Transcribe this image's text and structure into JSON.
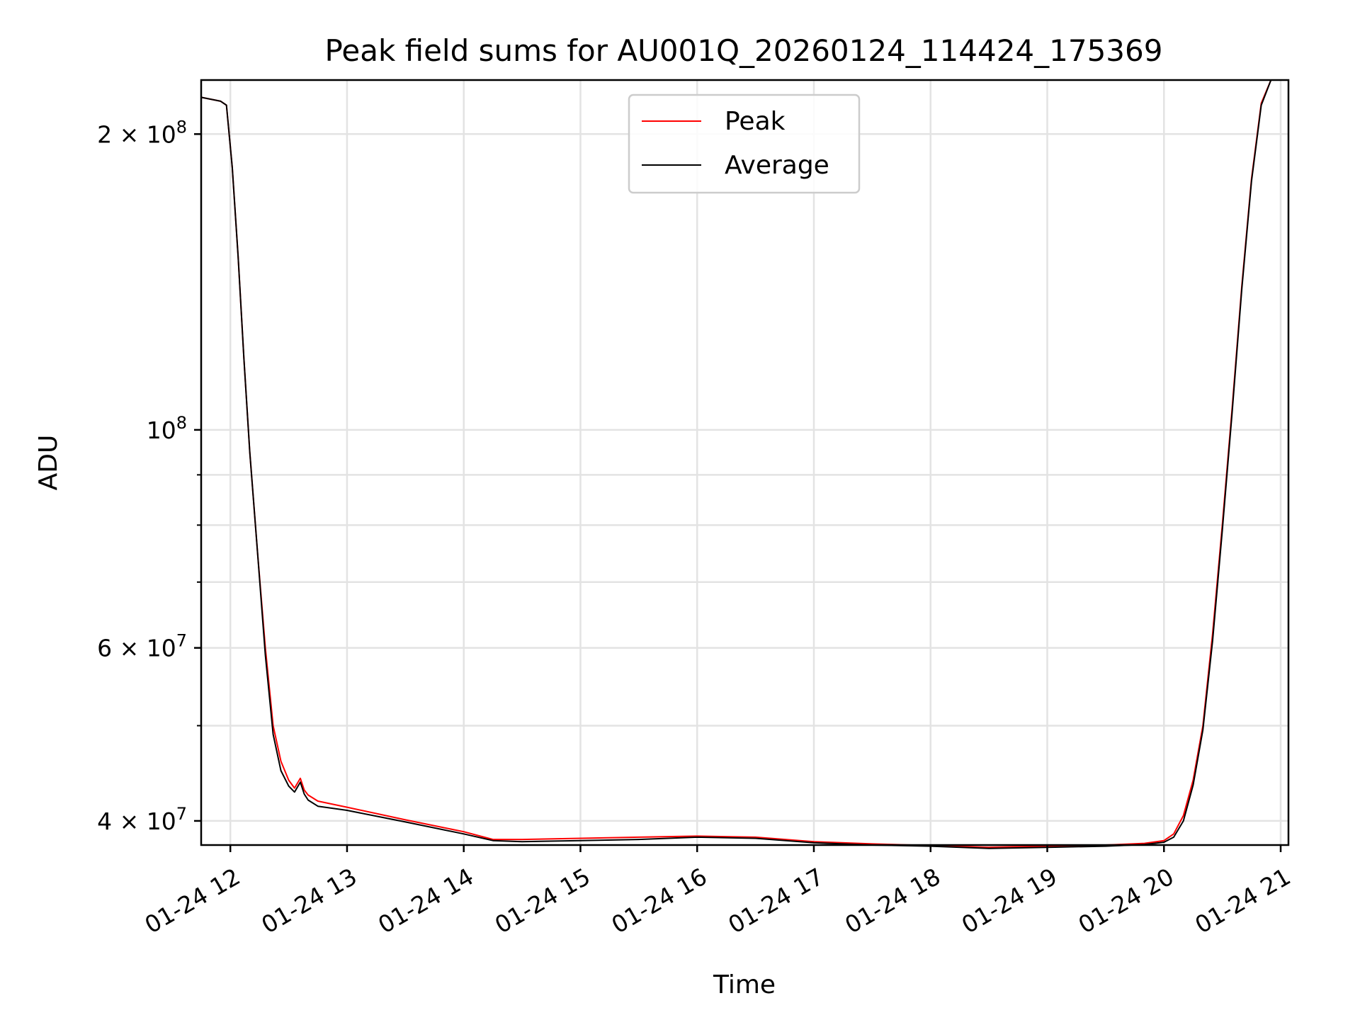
{
  "chart_data": {
    "type": "line",
    "title": "Peak field sums for AU001Q_20260124_114424_175369",
    "xlabel": "Time",
    "ylabel": "ADU",
    "yscale": "log",
    "ylim": [
      37800000,
      227000000
    ],
    "xlim": [
      "01-24 11:45",
      "01-24 21:04"
    ],
    "grid": true,
    "legend_position": "upper-center",
    "x_ticks": [
      "01-24 12",
      "01-24 13",
      "01-24 14",
      "01-24 15",
      "01-24 16",
      "01-24 17",
      "01-24 18",
      "01-24 19",
      "01-24 20",
      "01-24 21"
    ],
    "y_ticks": [
      {
        "value": 40000000,
        "label": "4 × 10⁷",
        "mantissa": "4",
        "exp": "7"
      },
      {
        "value": 60000000,
        "label": "6 × 10⁷",
        "mantissa": "6",
        "exp": "7"
      },
      {
        "value": 100000000,
        "label": "10⁸",
        "mantissa": "",
        "exp": "8"
      },
      {
        "value": 200000000,
        "label": "2 × 10⁸",
        "mantissa": "2",
        "exp": "8"
      }
    ],
    "series": [
      {
        "name": "Peak",
        "color": "#ff0000",
        "x": [
          "01-24 11:45",
          "01-24 11:55",
          "01-24 11:58",
          "01-24 12:01",
          "01-24 12:04",
          "01-24 12:07",
          "01-24 12:10",
          "01-24 12:14",
          "01-24 12:18",
          "01-24 12:22",
          "01-24 12:26",
          "01-24 12:30",
          "01-24 12:33",
          "01-24 12:36",
          "01-24 12:38",
          "01-24 12:40",
          "01-24 12:45",
          "01-24 13:00",
          "01-24 13:30",
          "01-24 14:00",
          "01-24 14:15",
          "01-24 14:30",
          "01-24 15:00",
          "01-24 15:30",
          "01-24 16:00",
          "01-24 16:30",
          "01-24 17:00",
          "01-24 17:30",
          "01-24 18:00",
          "01-24 18:30",
          "01-24 18:45",
          "01-24 19:00",
          "01-24 19:30",
          "01-24 19:50",
          "01-24 20:00",
          "01-24 20:05",
          "01-24 20:10",
          "01-24 20:15",
          "01-24 20:20",
          "01-24 20:25",
          "01-24 20:30",
          "01-24 20:35",
          "01-24 20:40",
          "01-24 20:45",
          "01-24 20:50",
          "01-24 20:55",
          "01-24 21:04"
        ],
        "y": [
          218000000,
          216000000,
          214000000,
          185000000,
          150000000,
          118000000,
          95000000,
          75000000,
          60000000,
          50000000,
          46000000,
          44000000,
          43200000,
          44200000,
          43000000,
          42500000,
          41900000,
          41300000,
          40100000,
          39000000,
          38300000,
          38300000,
          38400000,
          38500000,
          38600000,
          38500000,
          38100000,
          37900000,
          37750000,
          37600000,
          37650000,
          37700000,
          37800000,
          37950000,
          38200000,
          38800000,
          40500000,
          44000000,
          50000000,
          62000000,
          80000000,
          105000000,
          140000000,
          180000000,
          215000000,
          227000000,
          227000000
        ]
      },
      {
        "name": "Average",
        "color": "#000000",
        "x": [
          "01-24 11:45",
          "01-24 11:55",
          "01-24 11:58",
          "01-24 12:01",
          "01-24 12:04",
          "01-24 12:07",
          "01-24 12:10",
          "01-24 12:14",
          "01-24 12:18",
          "01-24 12:22",
          "01-24 12:26",
          "01-24 12:30",
          "01-24 12:33",
          "01-24 12:36",
          "01-24 12:38",
          "01-24 12:40",
          "01-24 12:45",
          "01-24 13:00",
          "01-24 13:30",
          "01-24 14:00",
          "01-24 14:15",
          "01-24 14:30",
          "01-24 15:00",
          "01-24 15:30",
          "01-24 16:00",
          "01-24 16:30",
          "01-24 17:00",
          "01-24 17:30",
          "01-24 18:00",
          "01-24 18:30",
          "01-24 18:45",
          "01-24 19:00",
          "01-24 19:30",
          "01-24 19:50",
          "01-24 20:00",
          "01-24 20:05",
          "01-24 20:10",
          "01-24 20:15",
          "01-24 20:20",
          "01-24 20:25",
          "01-24 20:30",
          "01-24 20:35",
          "01-24 20:40",
          "01-24 20:45",
          "01-24 20:50",
          "01-24 20:55",
          "01-24 21:04"
        ],
        "y": [
          218000000,
          216000000,
          214000000,
          185000000,
          150000000,
          118000000,
          95000000,
          75000000,
          59000000,
          49000000,
          45000000,
          43400000,
          42800000,
          43800000,
          42600000,
          42000000,
          41400000,
          41000000,
          39900000,
          38800000,
          38200000,
          38100000,
          38200000,
          38300000,
          38500000,
          38400000,
          38000000,
          37800000,
          37700000,
          37500000,
          37550000,
          37600000,
          37700000,
          37850000,
          38050000,
          38500000,
          40000000,
          43500000,
          49500000,
          61000000,
          79000000,
          104000000,
          139000000,
          179000000,
          214000000,
          227000000,
          227000000
        ]
      }
    ]
  }
}
